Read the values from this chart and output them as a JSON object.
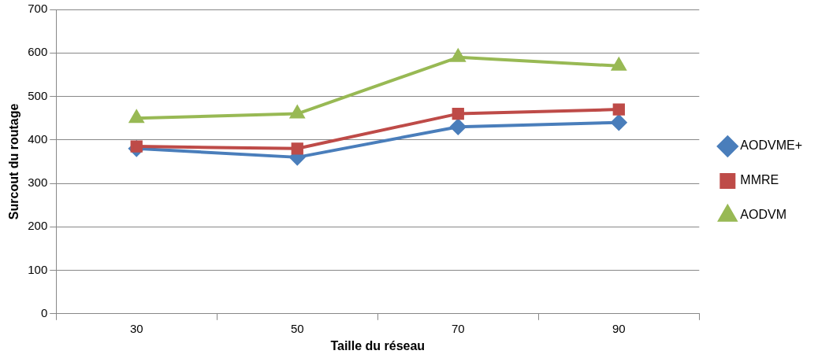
{
  "chart_data": {
    "type": "line",
    "xlabel": "Taille du réseau",
    "ylabel": "Surcout du routage",
    "categories": [
      "30",
      "50",
      "70",
      "90"
    ],
    "series": [
      {
        "name": "AODVME+",
        "color": "#4a7ebb",
        "marker": "diamond",
        "values": [
          380,
          360,
          430,
          440
        ]
      },
      {
        "name": "MMRE",
        "color": "#be4b48",
        "marker": "square",
        "values": [
          385,
          380,
          460,
          470
        ]
      },
      {
        "name": "AODVM",
        "color": "#98b954",
        "marker": "triangle",
        "values": [
          450,
          460,
          590,
          570
        ]
      }
    ],
    "ylim": [
      0,
      700
    ],
    "yticks": [
      0,
      100,
      200,
      300,
      400,
      500,
      600,
      700
    ],
    "grid": "y",
    "legend": "right",
    "line_style": "solid"
  }
}
